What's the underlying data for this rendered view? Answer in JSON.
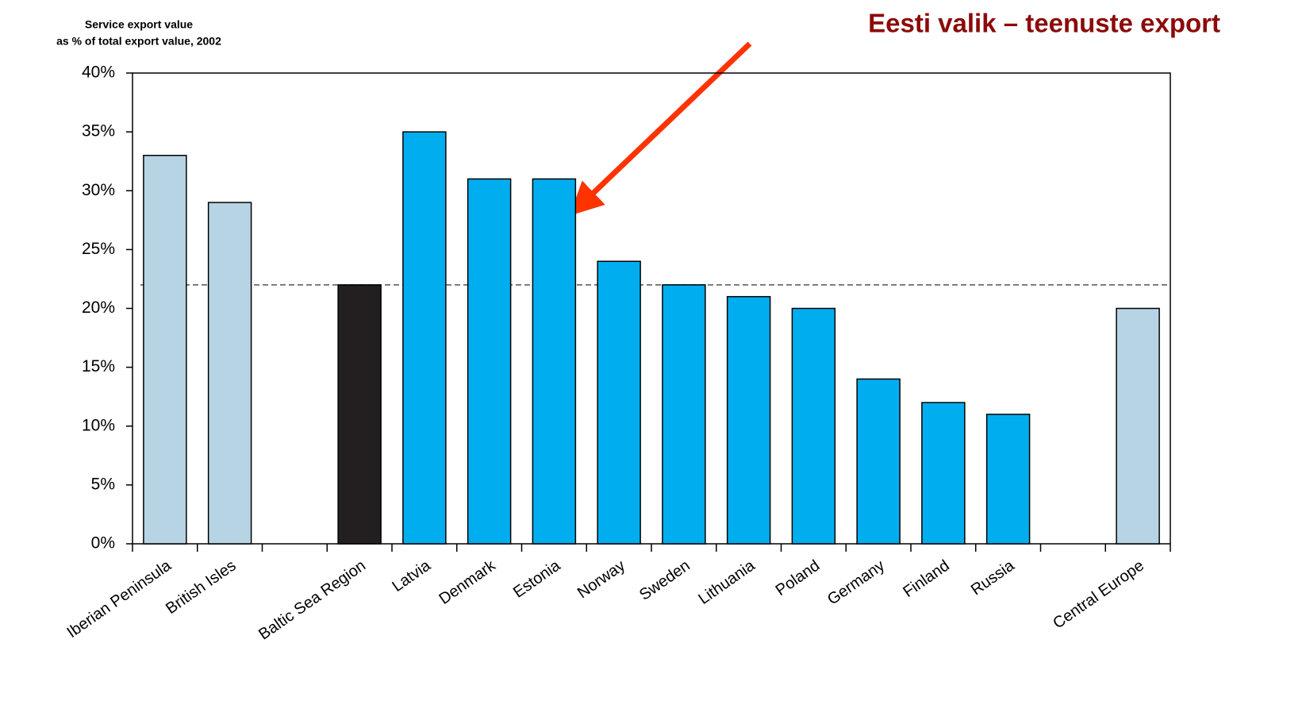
{
  "chart_data": {
    "type": "bar",
    "title": "Eesti valik – teenuste export",
    "y_axis_label": [
      "Service export value",
      "as % of total export value, 2002"
    ],
    "categories": [
      "Iberian Peninsula",
      "British Isles",
      null,
      "Baltic Sea Region",
      "Latvia",
      "Denmark",
      "Estonia",
      "Norway",
      "Sweden",
      "Lithuania",
      "Poland",
      "Germany",
      "Finland",
      "Russia",
      null,
      "Central Europe"
    ],
    "values": [
      33,
      29,
      null,
      22,
      35,
      31,
      31,
      24,
      22,
      21,
      20,
      14,
      12,
      11,
      null,
      20
    ],
    "colors": [
      "#b7d4e4",
      "#b7d4e4",
      null,
      "#231f20",
      "#00aeef",
      "#00aeef",
      "#00aeef",
      "#00aeef",
      "#00aeef",
      "#00aeef",
      "#00aeef",
      "#00aeef",
      "#00aeef",
      "#00aeef",
      null,
      "#b7d4e4"
    ],
    "ylim": [
      0,
      40
    ],
    "yticks": [
      {
        "value": 0,
        "label": "0%"
      },
      {
        "value": 5,
        "label": "5%"
      },
      {
        "value": 10,
        "label": "10%"
      },
      {
        "value": 15,
        "label": "15%"
      },
      {
        "value": 20,
        "label": "20%"
      },
      {
        "value": 25,
        "label": "25%"
      },
      {
        "value": 30,
        "label": "30%"
      },
      {
        "value": 35,
        "label": "35%"
      },
      {
        "value": 40,
        "label": "40%"
      }
    ],
    "reference_line": 22,
    "grid": false
  }
}
